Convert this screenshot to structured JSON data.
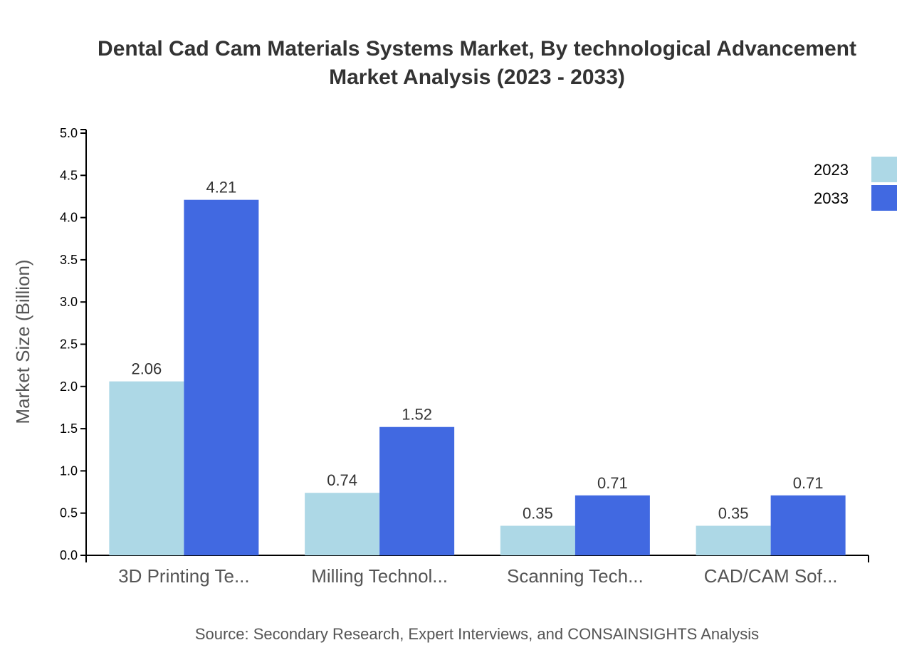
{
  "chart_data": {
    "type": "bar",
    "title_line1": "Dental Cad Cam Materials Systems Market, By technological Advancement",
    "title_line2": "Market Analysis (2023 - 2033)",
    "ylabel": "Market Size (Billion)",
    "xlabel": "",
    "ylim": [
      0,
      5.0
    ],
    "yticks": [
      "0.0",
      "0.5",
      "1.0",
      "1.5",
      "2.0",
      "2.5",
      "3.0",
      "3.5",
      "4.0",
      "4.5",
      "5.0"
    ],
    "categories": [
      "3D Printing Te...",
      "Milling Technol...",
      "Scanning Tech...",
      "CAD/CAM Sof..."
    ],
    "series": [
      {
        "name": "2023",
        "color": "#add8e6",
        "values": [
          2.06,
          0.74,
          0.35,
          0.35
        ]
      },
      {
        "name": "2033",
        "color": "#4169e1",
        "values": [
          4.21,
          1.52,
          0.71,
          0.71
        ]
      }
    ],
    "legend_position": "top-right",
    "grid": false
  },
  "source": "Source: Secondary Research, Expert Interviews, and CONSAINSIGHTS Analysis"
}
